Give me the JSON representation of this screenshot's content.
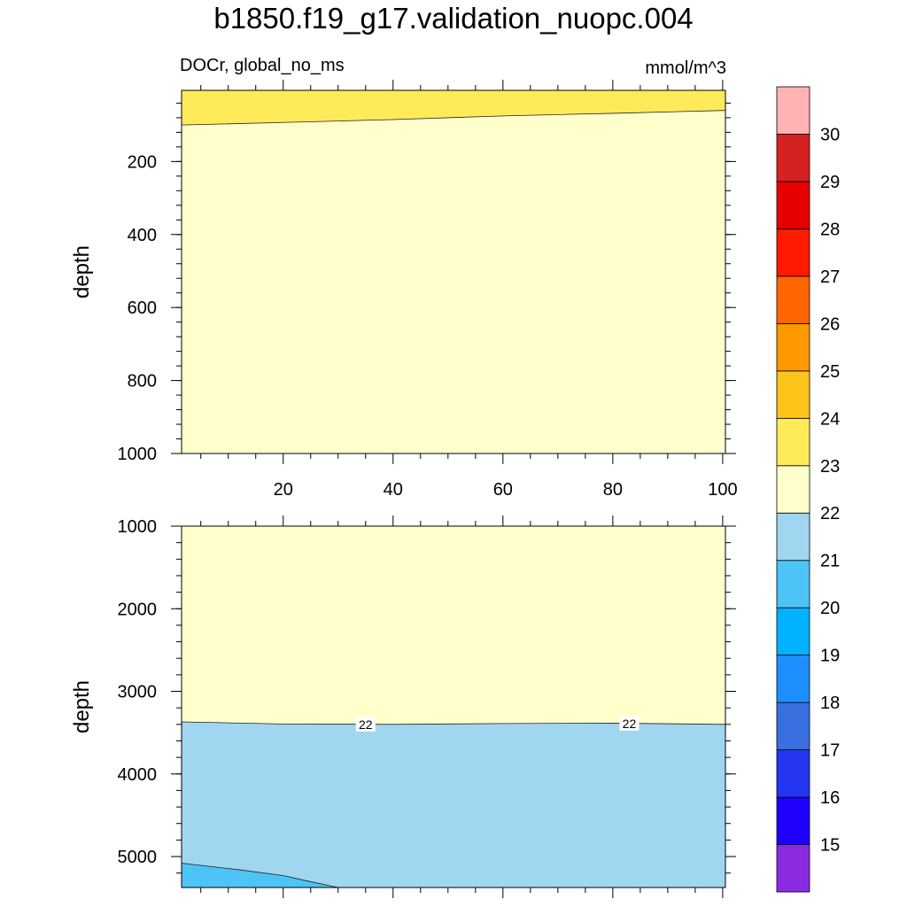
{
  "title": "b1850.f19_g17.validation_nuopc.004",
  "subtitle_left": "DOCr, global_no_ms",
  "subtitle_right": "mmol/m^3",
  "colorbar": {
    "labels": [
      "15",
      "16",
      "17",
      "18",
      "19",
      "20",
      "21",
      "22",
      "23",
      "24",
      "25",
      "26",
      "27",
      "28",
      "29",
      "30"
    ],
    "colors": [
      "#8a2be2",
      "#1f00ff",
      "#2436f0",
      "#3a6fe0",
      "#1e8fff",
      "#00b2ff",
      "#4cc4f5",
      "#a0d6f0",
      "#ffffcc",
      "#ffeb5a",
      "#ffc41a",
      "#ff9900",
      "#ff6600",
      "#ff1a00",
      "#e60000",
      "#d42121",
      "#ffb3b3"
    ]
  },
  "chart_data": [
    {
      "type": "contour",
      "panel": "upper",
      "ylabel": "depth",
      "x_ticks": [
        "20",
        "40",
        "60",
        "80",
        "100"
      ],
      "x_tick_values": [
        20,
        40,
        60,
        80,
        100
      ],
      "y_ticks": [
        "200",
        "400",
        "600",
        "800",
        "1000"
      ],
      "y_tick_values": [
        200,
        400,
        600,
        800,
        1000
      ],
      "xlim": [
        1.5,
        100.5
      ],
      "ylim": [
        5,
        1000
      ],
      "y_inverted": true,
      "regions": [
        {
          "band": "23-24",
          "color": "#ffeb5a",
          "boundary_x": [
            1.5,
            20,
            40,
            60,
            80,
            100.5
          ],
          "boundary_depth": [
            100,
            93,
            85,
            75,
            68,
            60
          ],
          "side": "shallow"
        },
        {
          "band": "22-23",
          "color": "#ffffcc",
          "side": "deep"
        }
      ]
    },
    {
      "type": "contour",
      "panel": "lower",
      "ylabel": "depth",
      "x_tick_values": [
        20,
        40,
        60,
        80,
        100
      ],
      "y_ticks": [
        "1000",
        "2000",
        "3000",
        "4000",
        "5000"
      ],
      "y_tick_values": [
        1000,
        2000,
        3000,
        4000,
        5000
      ],
      "xlim": [
        1.5,
        100.5
      ],
      "ylim": [
        1000,
        5375
      ],
      "y_inverted": true,
      "contour_labels": [
        {
          "text": "22",
          "x": 35,
          "depth": 3400
        },
        {
          "text": "22",
          "x": 83,
          "depth": 3390
        }
      ],
      "regions": [
        {
          "band": "22-23",
          "color": "#ffffcc",
          "side": "shallow"
        },
        {
          "band": "21-22",
          "color": "#a0d6f0",
          "boundary_x": [
            1.5,
            20,
            40,
            60,
            80,
            100.5
          ],
          "boundary_depth": [
            3370,
            3395,
            3400,
            3390,
            3385,
            3400
          ]
        },
        {
          "band": "20-21",
          "color": "#4cc4f5",
          "boundary_x": [
            1.5,
            12,
            20,
            24,
            30
          ],
          "boundary_depth": [
            5080,
            5160,
            5230,
            5290,
            5375
          ],
          "side": "deep"
        }
      ]
    }
  ]
}
